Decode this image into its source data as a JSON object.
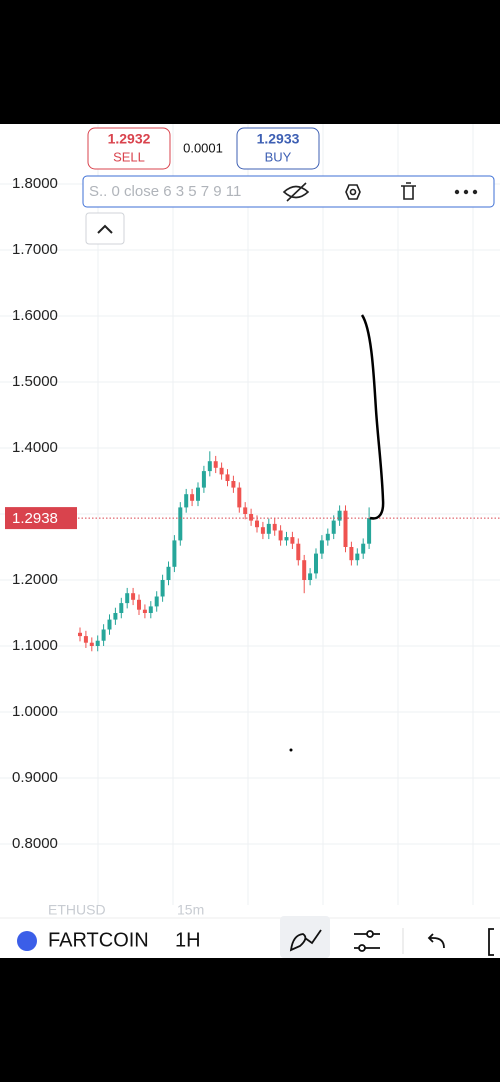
{
  "trade": {
    "sell_price": "1.2932",
    "sell_label": "SELL",
    "spread": "0.0001",
    "buy_price": "1.2933",
    "buy_label": "BUY"
  },
  "toolbar": {
    "indicator": "S.. 0 close 6 3 5 7 9 11"
  },
  "chart_data": {
    "type": "candlestick",
    "up_color": "#26a69a",
    "down_color": "#ef5350",
    "open": [
      1.12,
      1.115,
      1.105,
      1.1,
      1.108,
      1.125,
      1.14,
      1.15,
      1.165,
      1.18,
      1.17,
      1.155,
      1.15,
      1.16,
      1.175,
      1.2,
      1.22,
      1.26,
      1.31,
      1.33,
      1.32,
      1.34,
      1.365,
      1.38,
      1.37,
      1.36,
      1.35,
      1.34,
      1.31,
      1.3,
      1.29,
      1.28,
      1.27,
      1.285,
      1.275,
      1.26,
      1.265,
      1.255,
      1.23,
      1.2,
      1.21,
      1.24,
      1.26,
      1.27,
      1.29,
      1.305,
      1.25,
      1.23,
      1.24,
      1.255
    ],
    "high": [
      1.128,
      1.123,
      1.113,
      1.116,
      1.133,
      1.148,
      1.158,
      1.173,
      1.188,
      1.188,
      1.178,
      1.163,
      1.168,
      1.183,
      1.208,
      1.228,
      1.268,
      1.318,
      1.338,
      1.338,
      1.348,
      1.373,
      1.395,
      1.388,
      1.378,
      1.368,
      1.358,
      1.348,
      1.318,
      1.308,
      1.298,
      1.288,
      1.293,
      1.293,
      1.283,
      1.273,
      1.273,
      1.263,
      1.238,
      1.218,
      1.248,
      1.268,
      1.278,
      1.298,
      1.313,
      1.313,
      1.258,
      1.248,
      1.263,
      1.31
    ],
    "low": [
      1.107,
      1.097,
      1.092,
      1.092,
      1.1,
      1.117,
      1.132,
      1.142,
      1.157,
      1.162,
      1.147,
      1.142,
      1.142,
      1.152,
      1.167,
      1.192,
      1.212,
      1.252,
      1.302,
      1.312,
      1.312,
      1.332,
      1.357,
      1.362,
      1.352,
      1.342,
      1.332,
      1.302,
      1.292,
      1.282,
      1.272,
      1.262,
      1.262,
      1.267,
      1.252,
      1.252,
      1.247,
      1.222,
      1.18,
      1.192,
      1.202,
      1.232,
      1.252,
      1.262,
      1.282,
      1.242,
      1.222,
      1.222,
      1.232,
      1.247
    ],
    "close": [
      1.115,
      1.105,
      1.1,
      1.108,
      1.125,
      1.14,
      1.15,
      1.165,
      1.18,
      1.17,
      1.155,
      1.15,
      1.16,
      1.175,
      1.2,
      1.22,
      1.26,
      1.31,
      1.33,
      1.32,
      1.34,
      1.365,
      1.38,
      1.37,
      1.36,
      1.35,
      1.34,
      1.31,
      1.3,
      1.29,
      1.28,
      1.27,
      1.285,
      1.275,
      1.26,
      1.265,
      1.255,
      1.23,
      1.2,
      1.21,
      1.24,
      1.26,
      1.27,
      1.29,
      1.305,
      1.25,
      1.23,
      1.24,
      1.255,
      1.2938
    ],
    "ylim": [
      0.7,
      1.9
    ],
    "yticks": [
      {
        "value": 0.8,
        "label": "0.8000"
      },
      {
        "value": 0.9,
        "label": "0.9000"
      },
      {
        "value": 1.0,
        "label": "1.0000"
      },
      {
        "value": 1.1,
        "label": "1.1000"
      },
      {
        "value": 1.2,
        "label": "1.2000"
      },
      {
        "value": 1.3,
        "label": "1.3000"
      },
      {
        "value": 1.4,
        "label": "1.4000"
      },
      {
        "value": 1.5,
        "label": "1.5000"
      },
      {
        "value": 1.6,
        "label": "1.6000"
      },
      {
        "value": 1.7,
        "label": "1.7000"
      },
      {
        "value": 1.8,
        "label": "1.8000"
      }
    ],
    "current_price": 1.2938,
    "grid": true
  },
  "time_axis": {
    "symbol": "ETHUSD",
    "interval": "15m"
  },
  "bottom_bar": {
    "symbol": "FARTCOIN",
    "interval": "1H"
  }
}
